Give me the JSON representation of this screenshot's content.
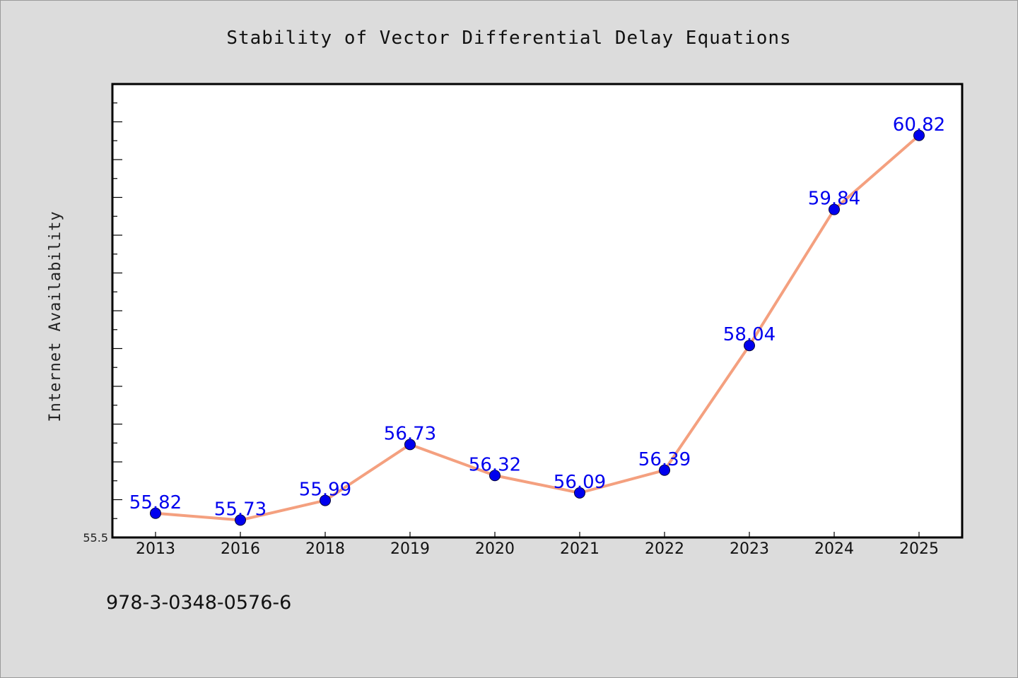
{
  "chart_data": {
    "type": "line",
    "title": "Stability of Vector Differential Delay Equations",
    "xlabel": "",
    "ylabel": "Internet Availability",
    "categories": [
      "2013",
      "2016",
      "2018",
      "2019",
      "2020",
      "2021",
      "2022",
      "2023",
      "2024",
      "2025"
    ],
    "series": [
      {
        "values": [
          55.82,
          55.73,
          55.99,
          56.73,
          56.32,
          56.09,
          56.39,
          58.04,
          59.84,
          60.82
        ]
      }
    ],
    "data_labels": [
      "55.82",
      "55.73",
      "55.99",
      "56.73",
      "56.32",
      "56.09",
      "56.39",
      "58.04",
      "59.84",
      "60.82"
    ],
    "y_tick_labels": [
      "55.5"
    ],
    "ylim": [
      55.5,
      61.5
    ],
    "grid": false,
    "line_color": "#f4a07f",
    "marker_color": "#0000ee",
    "label_color": "#0000ee",
    "background_color": "#dcdcdc",
    "plot_background_color": "#ffffff"
  },
  "footer": {
    "isbn": "978-3-0348-0576-6"
  }
}
